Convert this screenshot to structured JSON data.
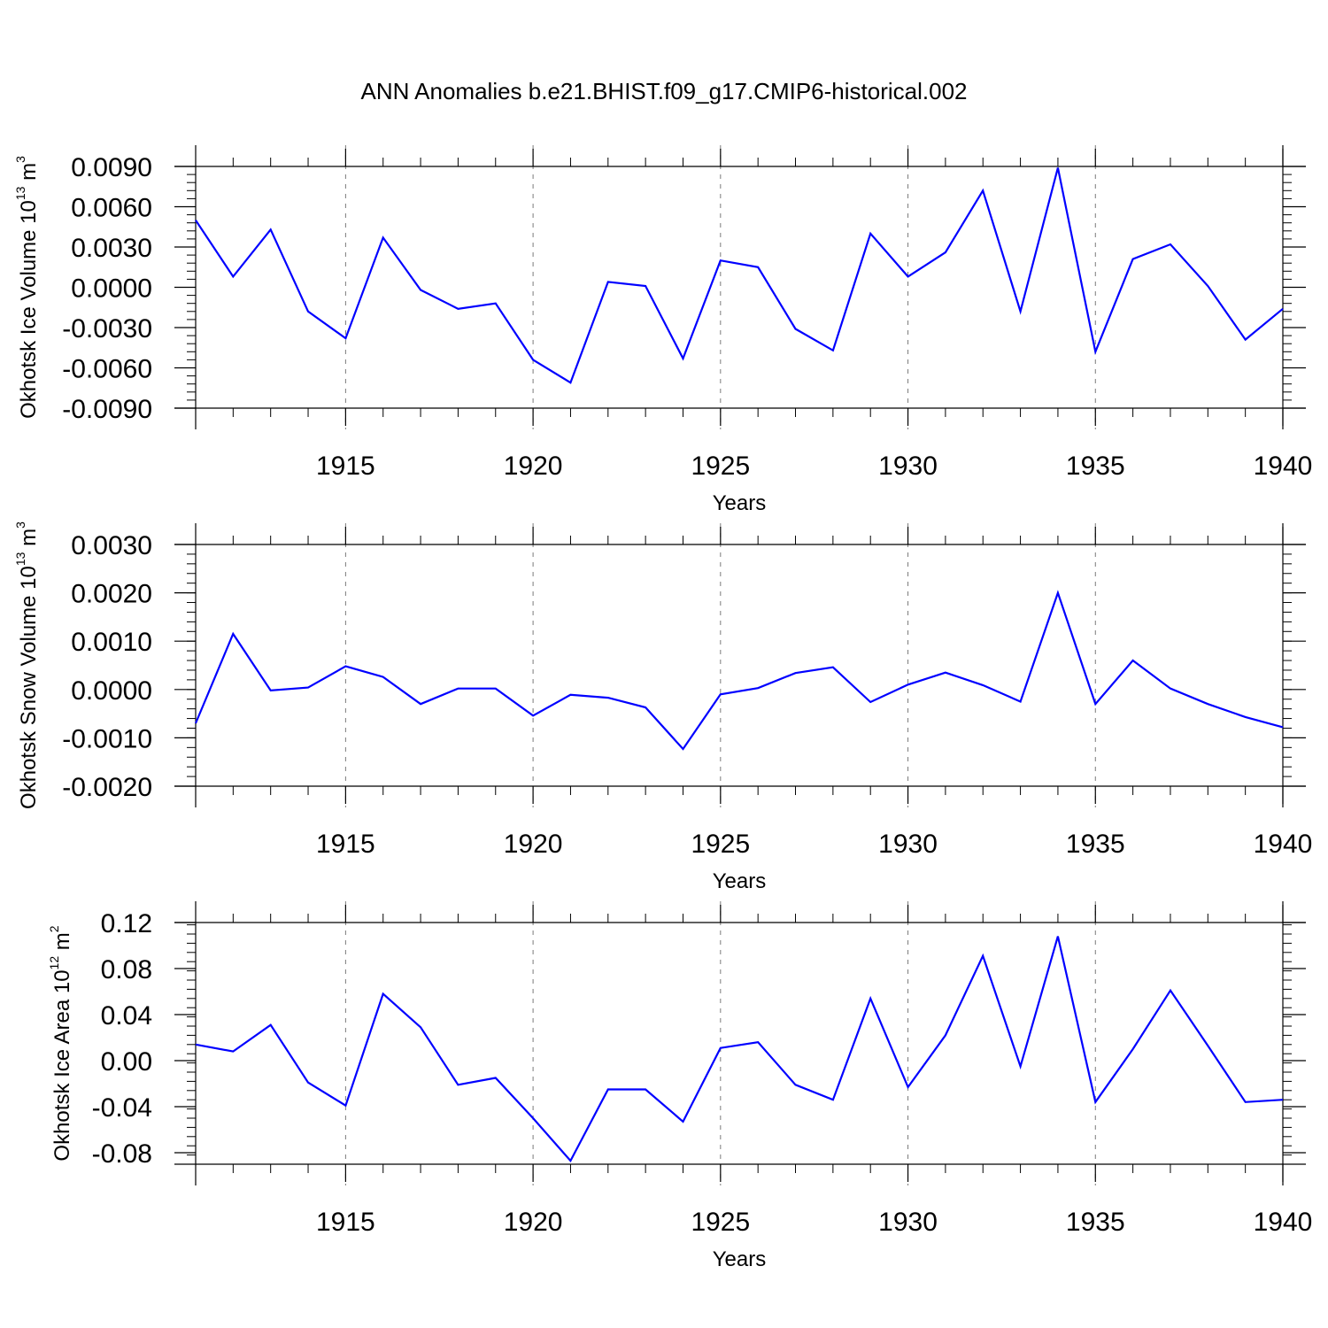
{
  "title": "ANN Anomalies b.e21.BHIST.f09_g17.CMIP6-historical.002",
  "style": {
    "line_color": "#0000ff",
    "grid": "dashed vertical at major x ticks"
  },
  "chart_data": [
    {
      "type": "line",
      "ylabel": {
        "text": "Okhotsk Ice Volume 10",
        "exp": "13",
        "unit": " m",
        "unit_exp": "3"
      },
      "xlabel": "Years",
      "xlim": [
        1911,
        1940
      ],
      "x_ticks": [
        1915,
        1920,
        1925,
        1930,
        1935,
        1940
      ],
      "x_tick_labels": [
        "1915",
        "1920",
        "1925",
        "1930",
        "1935",
        "1940"
      ],
      "ylim": [
        -0.009,
        0.009
      ],
      "y_ticks": [
        -0.009,
        -0.006,
        -0.003,
        0.0,
        0.003,
        0.006,
        0.009
      ],
      "y_tick_labels": [
        "-0.0090",
        "-0.0060",
        "-0.0030",
        "0.0000",
        "0.0030",
        "0.0060",
        "0.0090"
      ],
      "x": [
        1911,
        1912,
        1913,
        1914,
        1915,
        1916,
        1917,
        1918,
        1919,
        1920,
        1921,
        1922,
        1923,
        1924,
        1925,
        1926,
        1927,
        1928,
        1929,
        1930,
        1931,
        1932,
        1933,
        1934,
        1935,
        1936,
        1937,
        1938,
        1939,
        1940
      ],
      "values": [
        0.005,
        0.0008,
        0.0043,
        -0.0018,
        -0.0038,
        0.0037,
        -0.0002,
        -0.0016,
        -0.0012,
        -0.0054,
        -0.0071,
        0.0004,
        0.0001,
        -0.0053,
        0.002,
        0.0015,
        -0.0031,
        -0.0047,
        0.004,
        0.0008,
        0.0026,
        0.0072,
        -0.0018,
        0.0089,
        -0.0048,
        0.0021,
        0.0032,
        0.0001,
        -0.0039,
        -0.0016
      ]
    },
    {
      "type": "line",
      "ylabel": {
        "text": "Okhotsk Snow Volume 10",
        "exp": "13",
        "unit": " m",
        "unit_exp": "3"
      },
      "xlabel": "Years",
      "xlim": [
        1911,
        1940
      ],
      "x_ticks": [
        1915,
        1920,
        1925,
        1930,
        1935,
        1940
      ],
      "x_tick_labels": [
        "1915",
        "1920",
        "1925",
        "1930",
        "1935",
        "1940"
      ],
      "ylim": [
        -0.002,
        0.003
      ],
      "y_ticks": [
        -0.002,
        -0.001,
        0.0,
        0.001,
        0.002,
        0.003
      ],
      "y_tick_labels": [
        "-0.0020",
        "-0.0010",
        "0.0000",
        "0.0010",
        "0.0020",
        "0.0030"
      ],
      "x": [
        1911,
        1912,
        1913,
        1914,
        1915,
        1916,
        1917,
        1918,
        1919,
        1920,
        1921,
        1922,
        1923,
        1924,
        1925,
        1926,
        1927,
        1928,
        1929,
        1930,
        1931,
        1932,
        1933,
        1934,
        1935,
        1936,
        1937,
        1938,
        1939,
        1940
      ],
      "values": [
        -0.0007,
        0.00115,
        -2e-05,
        4e-05,
        0.00048,
        0.00026,
        -0.0003,
        2e-05,
        2e-05,
        -0.00054,
        -0.00011,
        -0.00017,
        -0.00037,
        -0.00123,
        -0.0001,
        3e-05,
        0.00034,
        0.00046,
        -0.00026,
        0.0001,
        0.00035,
        9e-05,
        -0.00025,
        0.002,
        -0.0003,
        0.0006,
        2e-05,
        -0.0003,
        -0.00057,
        -0.00078
      ]
    },
    {
      "type": "line",
      "ylabel": {
        "text": "Okhotsk Ice Area 10",
        "exp": "12",
        "unit": " m",
        "unit_exp": "2"
      },
      "xlabel": "Years",
      "xlim": [
        1911,
        1940
      ],
      "x_ticks": [
        1915,
        1920,
        1925,
        1930,
        1935,
        1940
      ],
      "x_tick_labels": [
        "1915",
        "1920",
        "1925",
        "1930",
        "1935",
        "1940"
      ],
      "ylim": [
        -0.09,
        0.12
      ],
      "y_ticks": [
        -0.08,
        -0.04,
        0.0,
        0.04,
        0.08,
        0.12
      ],
      "y_tick_labels": [
        "-0.08",
        "-0.04",
        "0.00",
        "0.04",
        "0.08",
        "0.12"
      ],
      "x": [
        1911,
        1912,
        1913,
        1914,
        1915,
        1916,
        1917,
        1918,
        1919,
        1920,
        1921,
        1922,
        1923,
        1924,
        1925,
        1926,
        1927,
        1928,
        1929,
        1930,
        1931,
        1932,
        1933,
        1934,
        1935,
        1936,
        1937,
        1938,
        1939,
        1940
      ],
      "values": [
        0.014,
        0.008,
        0.031,
        -0.019,
        -0.039,
        0.058,
        0.029,
        -0.021,
        -0.015,
        -0.05,
        -0.087,
        -0.025,
        -0.025,
        -0.053,
        0.011,
        0.016,
        -0.021,
        -0.034,
        0.054,
        -0.023,
        0.022,
        0.091,
        -0.005,
        0.108,
        -0.036,
        0.01,
        0.061,
        0.013,
        -0.036,
        -0.034
      ]
    }
  ]
}
